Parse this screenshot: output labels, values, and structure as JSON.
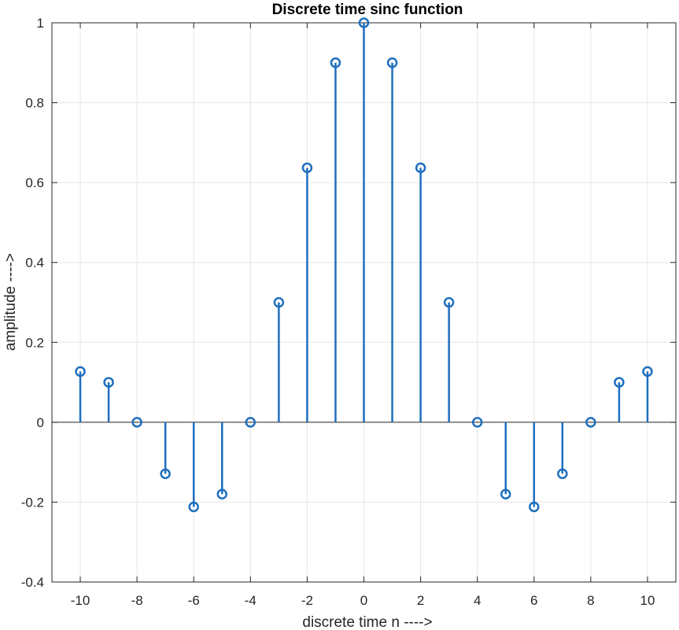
{
  "chart_data": {
    "type": "stem",
    "title": "Discrete time sinc function",
    "xlabel": "discrete time n ---->",
    "ylabel": "amplitude ---->",
    "xlim": [
      -11,
      11
    ],
    "ylim": [
      -0.4,
      1
    ],
    "xticks": [
      "-10",
      "-8",
      "-6",
      "-4",
      "-2",
      "0",
      "2",
      "4",
      "6",
      "8",
      "10"
    ],
    "yticks": [
      "-0.4",
      "-0.2",
      "0",
      "0.2",
      "0.4",
      "0.6",
      "0.8",
      "1"
    ],
    "grid": true,
    "color": "#1f6fbf",
    "x": [
      -10,
      -9,
      -8,
      -7,
      -6,
      -5,
      -4,
      -3,
      -2,
      -1,
      0,
      1,
      2,
      3,
      4,
      5,
      6,
      7,
      8,
      9,
      10
    ],
    "values": [
      0.127,
      0.1,
      0,
      -0.129,
      -0.212,
      -0.18,
      0,
      0.3,
      0.637,
      0.9,
      1,
      0.9,
      0.637,
      0.3,
      0,
      -0.18,
      -0.212,
      -0.129,
      0,
      0.1,
      0.127
    ]
  }
}
